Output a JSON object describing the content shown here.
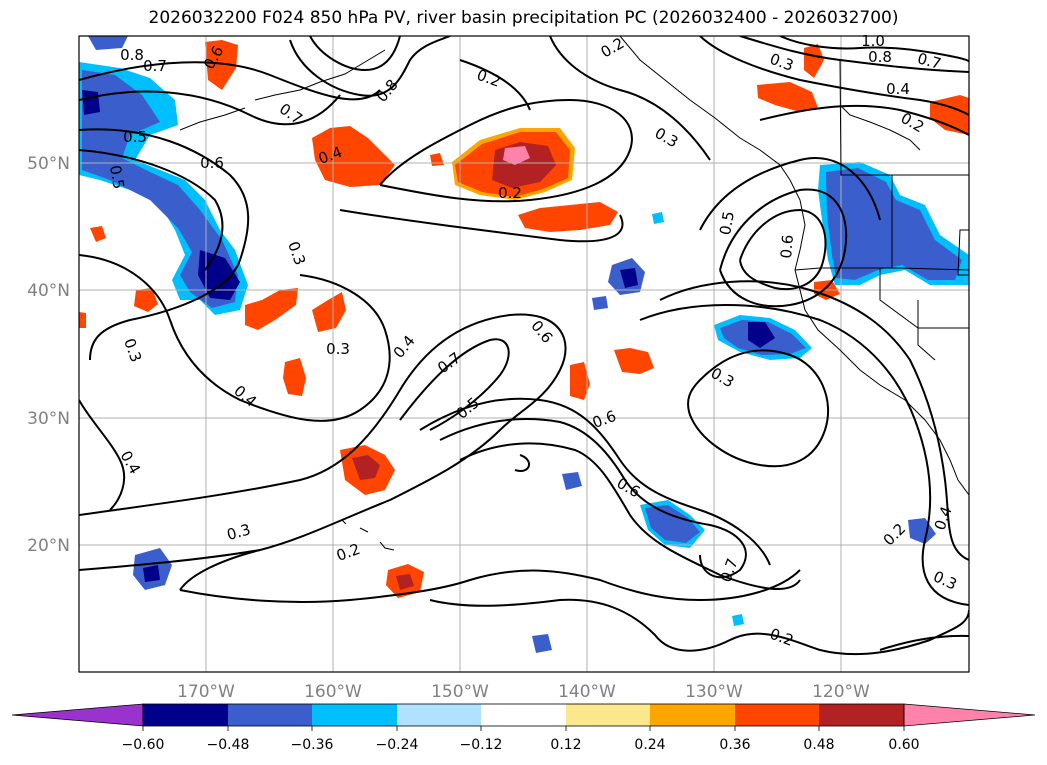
{
  "title": "2026032200 F024 850 hPa PV, river basin precipitation PC (2026032400 - 2026032700)",
  "lon_ticks": [
    "170°W",
    "160°W",
    "150°W",
    "140°W",
    "130°W",
    "120°W"
  ],
  "lat_ticks": [
    "50°N",
    "40°N",
    "30°N",
    "20°N"
  ],
  "colorbar": {
    "labels": [
      "−0.60",
      "−0.48",
      "−0.36",
      "−0.24",
      "−0.12",
      "0.12",
      "0.24",
      "0.36",
      "0.48",
      "0.60"
    ],
    "colors": [
      "#9a32cd",
      "#00008b",
      "#3a5fcd",
      "#00bfff",
      "#b0e2ff",
      "#ffffff",
      "#fce88c",
      "#ffa500",
      "#ff4500",
      "#b22222",
      "#ff82ab"
    ]
  },
  "contour_labels": [
    {
      "text": "0.8"
    },
    {
      "text": "0.7"
    },
    {
      "text": "0.6"
    },
    {
      "text": "0.5"
    },
    {
      "text": "0.5"
    },
    {
      "text": "0.6"
    },
    {
      "text": "0.7"
    },
    {
      "text": "0.4"
    },
    {
      "text": "0.2"
    },
    {
      "text": "0.3"
    },
    {
      "text": "0.3"
    },
    {
      "text": "0.3"
    },
    {
      "text": "0.3"
    },
    {
      "text": "0.4"
    },
    {
      "text": "0.4"
    },
    {
      "text": "0.4"
    },
    {
      "text": "0.7"
    },
    {
      "text": "0.5"
    },
    {
      "text": "0.6"
    },
    {
      "text": "0.6"
    },
    {
      "text": "0.6"
    },
    {
      "text": "0.3"
    },
    {
      "text": "0.2"
    },
    {
      "text": "0.3"
    },
    {
      "text": "0.2"
    },
    {
      "text": "0.7"
    },
    {
      "text": "0.2"
    },
    {
      "text": "0.2"
    },
    {
      "text": "0.3"
    },
    {
      "text": "0.4"
    },
    {
      "text": "0.5"
    },
    {
      "text": "0.6"
    },
    {
      "text": "1.0"
    },
    {
      "text": "0.8"
    },
    {
      "text": "0.7"
    },
    {
      "text": "0.4"
    },
    {
      "text": "0.2"
    },
    {
      "text": "0.3"
    },
    {
      "text": "0.8"
    },
    {
      "text": "0.2"
    }
  ]
}
